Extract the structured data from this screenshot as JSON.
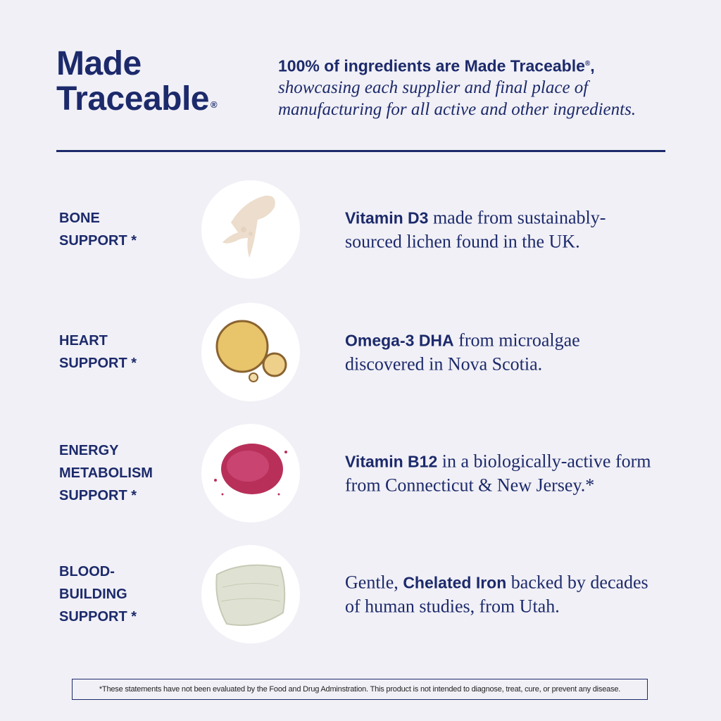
{
  "header": {
    "title_line1": "Made",
    "title_line2": "Traceable",
    "registered_mark": "®",
    "lead": "100% of ingredients are Made Traceable",
    "lead_suffix": ",",
    "rest": "showcasing each supplier and final place of manufacturing for all active and other ingredients."
  },
  "colors": {
    "brand_navy": "#1c2a6b",
    "background": "#f1f0f6"
  },
  "rows": [
    {
      "label_lines": [
        "BONE",
        "SUPPORT *"
      ],
      "image": "liquid-drops-illustration",
      "pre": "",
      "bold": "Vitamin D3",
      "post": " made from sustainably-sourced lichen found in the UK."
    },
    {
      "label_lines": [
        "HEART",
        "SUPPORT *"
      ],
      "image": "oil-droplets-illustration",
      "pre": "",
      "bold": "Omega-3 DHA",
      "post": " from microalgae discovered in Nova Scotia."
    },
    {
      "label_lines": [
        "ENERGY",
        "METABOLISM",
        "SUPPORT *"
      ],
      "image": "red-powder-illustration",
      "pre": "",
      "bold": "Vitamin B12",
      "post": " in a biologically-active form from Connecticut & New Jersey.*"
    },
    {
      "label_lines": [
        "BLOOD-",
        "BUILDING",
        "SUPPORT *"
      ],
      "image": "cream-smear-illustration",
      "pre": "Gentle, ",
      "bold": "Chelated Iron",
      "post": " backed by decades of human studies, from Utah."
    }
  ],
  "disclaimer": "*These statements have not been evaluated by the Food and Drug Adminstration. This product is not intended to diagnose, treat, cure, or prevent any disease."
}
